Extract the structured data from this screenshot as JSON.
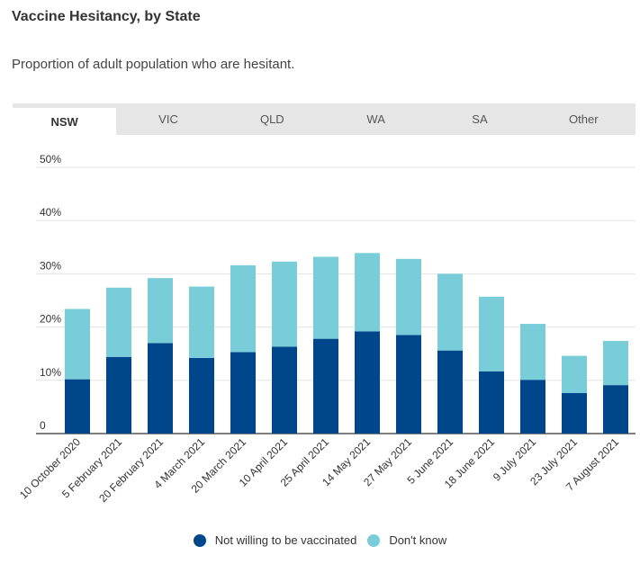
{
  "header": {
    "title": "Vaccine Hesitancy, by State",
    "subtitle": "Proportion of adult population who are hesitant."
  },
  "tabs": [
    {
      "label": "NSW",
      "active": true
    },
    {
      "label": "VIC",
      "active": false
    },
    {
      "label": "QLD",
      "active": false
    },
    {
      "label": "WA",
      "active": false
    },
    {
      "label": "SA",
      "active": false
    },
    {
      "label": "Other",
      "active": false
    }
  ],
  "colors": {
    "dark": "#00468b",
    "light": "#79cdd8"
  },
  "chart_data": {
    "type": "bar",
    "stacked": true,
    "categories": [
      "10 October 2020",
      "5 February 2021",
      "20 February 2021",
      "4 March 2021",
      "20 March 2021",
      "10 April 2021",
      "25 April 2021",
      "14 May 2021",
      "27 May 2021",
      "5 June 2021",
      "18 June 2021",
      "9 July 2021",
      "23 July 2021",
      "7 August 2021"
    ],
    "series": [
      {
        "name": "Not willing to be vaccinated",
        "values": [
          10.2,
          14.4,
          17.0,
          14.2,
          15.3,
          16.3,
          17.8,
          19.2,
          18.5,
          15.6,
          11.7,
          10.1,
          7.6,
          9.1
        ]
      },
      {
        "name": "Don't know",
        "values": [
          13.2,
          13.0,
          12.2,
          13.4,
          16.3,
          16.0,
          15.4,
          14.7,
          14.3,
          14.4,
          14.0,
          10.5,
          7.0,
          8.3
        ]
      }
    ],
    "yticks": [
      "0",
      "10%",
      "20%",
      "30%",
      "40%",
      "50%"
    ],
    "ylim": [
      0,
      50
    ],
    "legend_position": "bottom",
    "grid": true
  }
}
